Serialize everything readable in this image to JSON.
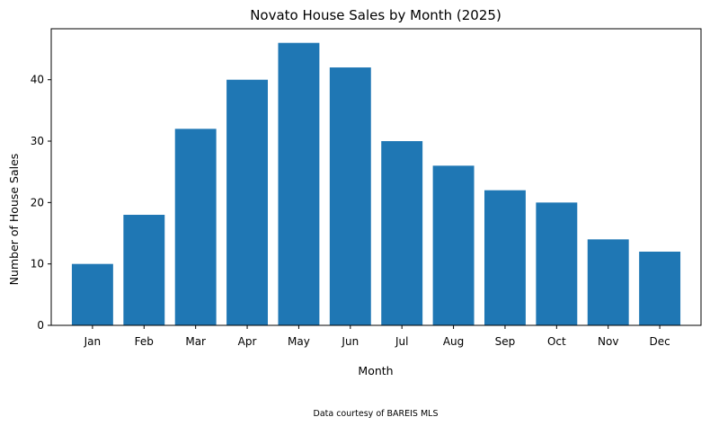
{
  "chart_data": {
    "type": "bar",
    "title": "Novato House Sales by Month (2025)",
    "xlabel": "Month",
    "ylabel": "Number of House Sales",
    "categories": [
      "Jan",
      "Feb",
      "Mar",
      "Apr",
      "May",
      "Jun",
      "Jul",
      "Aug",
      "Sep",
      "Oct",
      "Nov",
      "Dec"
    ],
    "values": [
      10,
      18,
      32,
      40,
      46,
      42,
      30,
      26,
      22,
      20,
      14,
      12
    ],
    "ylim": [
      0,
      48.3
    ],
    "yticks": [
      0,
      10,
      20,
      30,
      40
    ],
    "grid": false,
    "bar_color": "#1f77b4",
    "footnote": "Data courtesy of BAREIS MLS"
  }
}
